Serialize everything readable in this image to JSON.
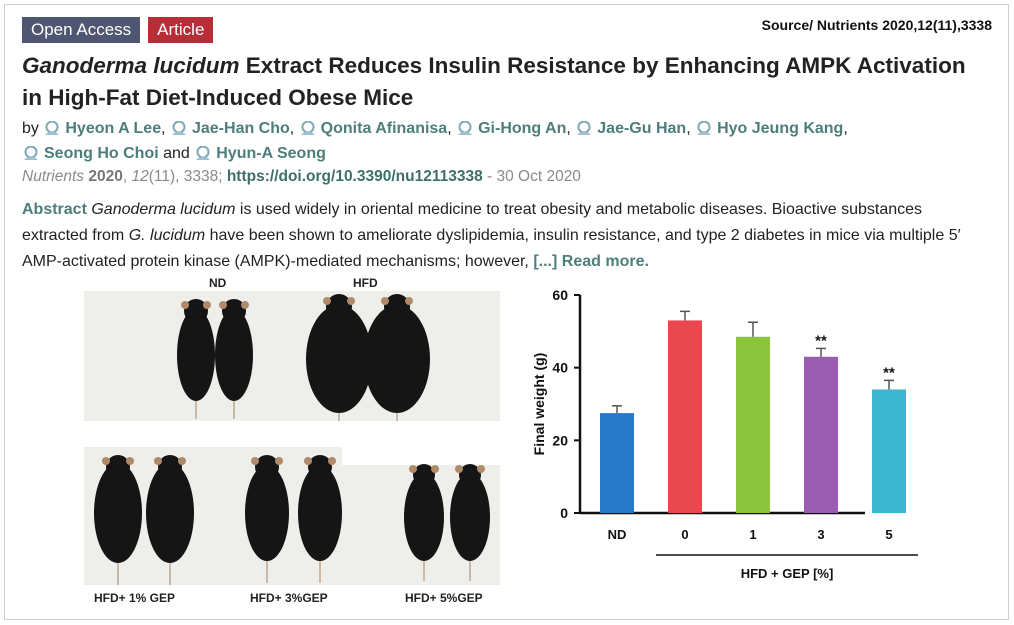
{
  "badges": {
    "open_access": "Open Access",
    "article": "Article"
  },
  "source": "Source/ Nutrients 2020,12(11),3338",
  "title": {
    "italic": "Ganoderma lucidum",
    "rest": " Extract Reduces Insulin Resistance by Enhancing AMPK Activation in High-Fat Diet-Induced Obese Mice"
  },
  "by_label": "by",
  "and_label": "and",
  "authors": [
    "Hyeon A Lee",
    "Jae-Han Cho",
    "Qonita Afinanisa",
    "Gi-Hong An",
    "Jae-Gu Han",
    "Hyo Jeung Kang",
    "Seong Ho Choi",
    "Hyun-A Seong"
  ],
  "citation": {
    "journal": "Nutrients",
    "year": "2020",
    "volume": "12",
    "issue_pages": "(11), 3338;",
    "doi": "https://doi.org/10.3390/nu12113338",
    "date": "- 30 Oct 2020"
  },
  "abstract": {
    "label": "Abstract",
    "s1_italic": "Ganoderma lucidum",
    "s1": " is used widely in oriental medicine to treat obesity and metabolic diseases. Bioactive substances extracted from ",
    "s2_italic": "G. lucidum",
    "s2": " have been shown to ameliorate dyslipidemia, insulin resistance, and type 2 diabetes in mice via multiple 5′ AMP-activated protein kinase (AMPK)-mediated mechanisms; however, ",
    "more": "[...] Read more."
  },
  "figure_labels": {
    "nd": "ND",
    "hfd": "HFD",
    "gep1": "HFD+ 1% GEP",
    "gep3": "HFD+ 3%GEP",
    "gep5": "HFD+ 5%GEP"
  },
  "chart_data": {
    "type": "bar",
    "categories": [
      "ND",
      "0",
      "1",
      "3",
      "5"
    ],
    "values": [
      27.5,
      53,
      48.5,
      43,
      34
    ],
    "errors": [
      2,
      2.5,
      4,
      2.3,
      2.5
    ],
    "significance": [
      "",
      "",
      "",
      "**",
      "**"
    ],
    "colors": [
      "#2878c8",
      "#e8484e",
      "#8cc43e",
      "#9a5cb0",
      "#3ab6d0"
    ],
    "ylabel": "Final weight (g)",
    "xlabel_group": "HFD + GEP [%]",
    "ylim": [
      0,
      60
    ],
    "yticks": [
      0,
      20,
      40,
      60
    ]
  }
}
